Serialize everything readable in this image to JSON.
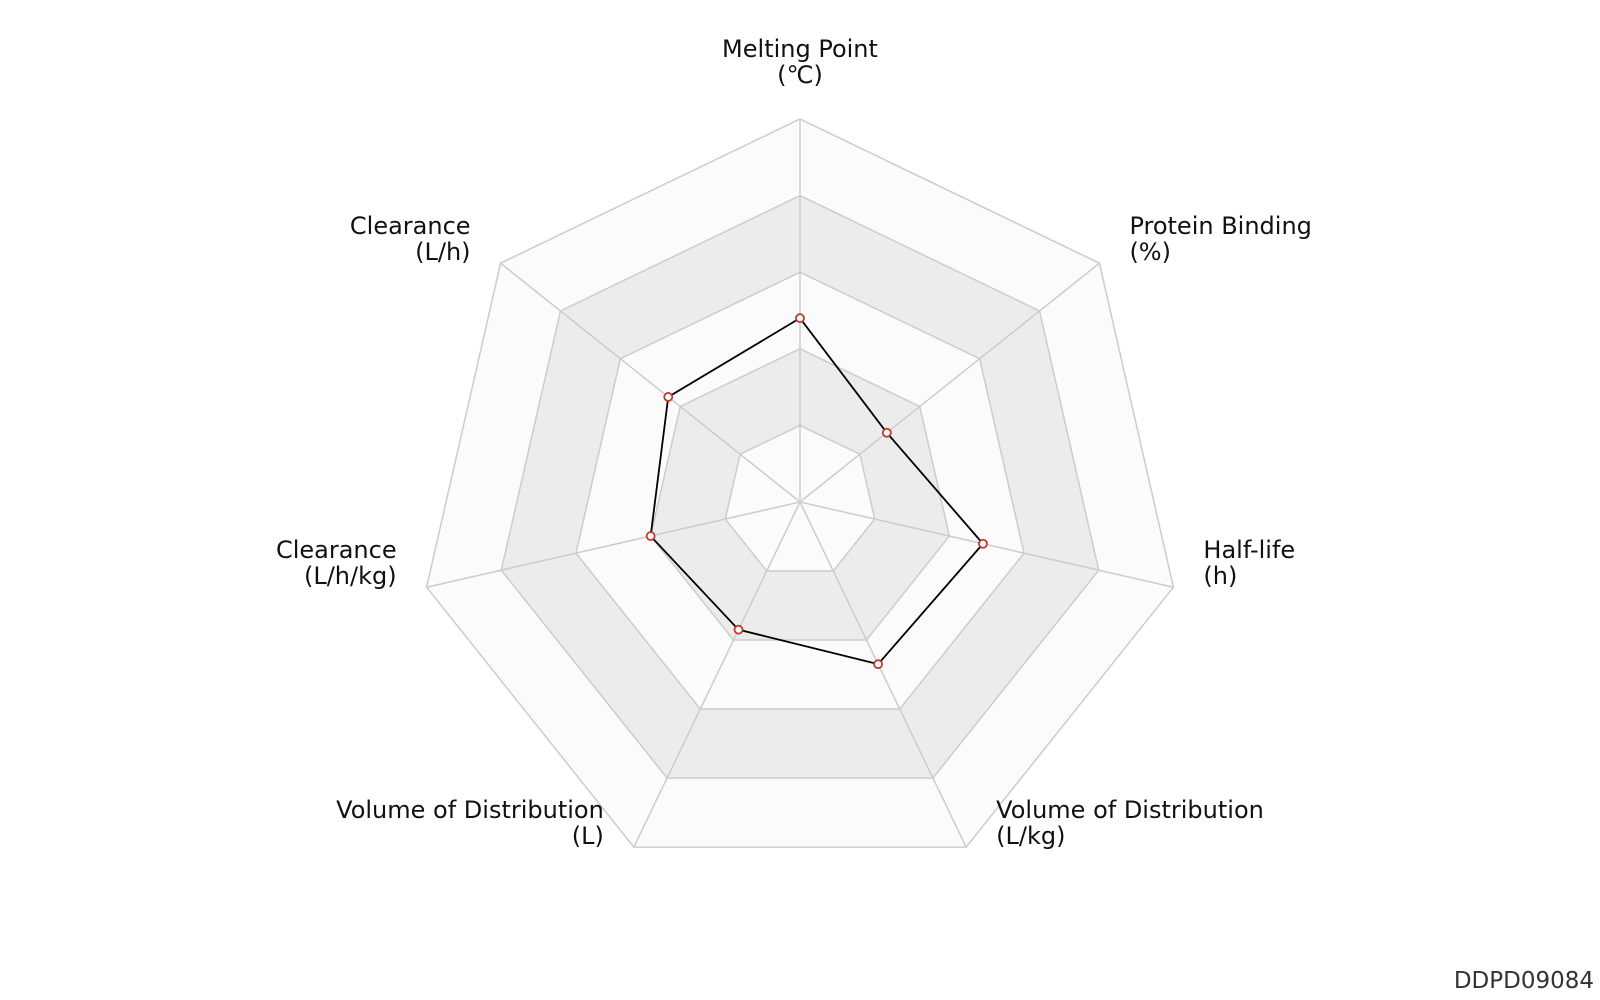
{
  "chart_data": {
    "type": "radar",
    "title": "",
    "rings": 5,
    "axes": [
      {
        "name": "Melting Point",
        "unit": "(℃)",
        "value": 0.48
      },
      {
        "name": "Protein Binding",
        "unit": "(%)",
        "value": 0.29
      },
      {
        "name": "Half-life",
        "unit": "(h)",
        "value": 0.49
      },
      {
        "name": "Volume of Distribution",
        "unit": "(L/kg)",
        "value": 0.47
      },
      {
        "name": "Volume of Distribution",
        "unit": "(L)",
        "value": 0.37
      },
      {
        "name": "Clearance",
        "unit": "(L/h/kg)",
        "value": 0.4
      },
      {
        "name": "Clearance",
        "unit": "(L/h)",
        "value": 0.44
      }
    ],
    "colors": {
      "grid": "#cccccc",
      "band_light": "#fbfbfb",
      "band_dark": "#ececec",
      "series_line": "#000000",
      "marker_stroke": "#c0392b",
      "marker_fill": "#ffffff"
    }
  },
  "watermark": "DDPD09084"
}
